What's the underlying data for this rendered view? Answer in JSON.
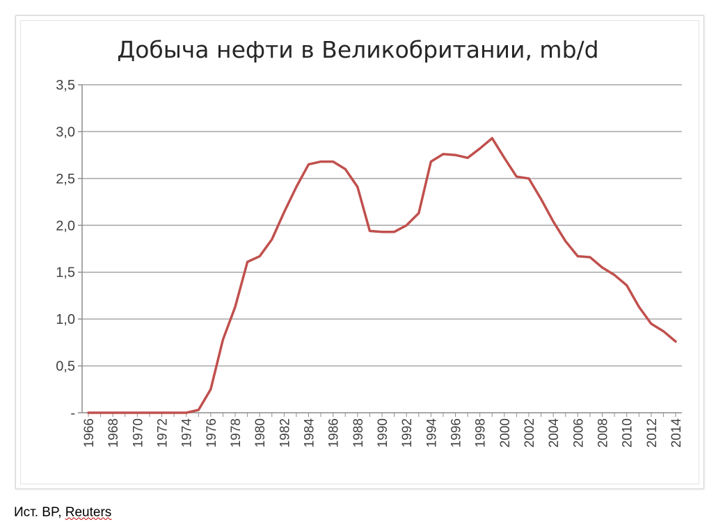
{
  "source": {
    "prefix": "Ист. BP, ",
    "name": "Reuters"
  },
  "chart_data": {
    "type": "line",
    "title": "Добыча нефти в Великобритании, mb/d",
    "xlabel": "",
    "ylabel": "",
    "ylim": [
      0,
      3.5
    ],
    "yticks": [
      "-",
      "0,5",
      "1,0",
      "1,5",
      "2,0",
      "2,5",
      "3,0",
      "3,5"
    ],
    "xtick_labels": [
      "1966",
      "1968",
      "1970",
      "1972",
      "1974",
      "1976",
      "1978",
      "1980",
      "1982",
      "1984",
      "1986",
      "1988",
      "1990",
      "1992",
      "1994",
      "1996",
      "1998",
      "2000",
      "2002",
      "2004",
      "2006",
      "2008",
      "2010",
      "2012",
      "2014"
    ],
    "grid": "horizontal",
    "line_color": "#c0504d",
    "x": [
      1966,
      1967,
      1968,
      1969,
      1970,
      1971,
      1972,
      1973,
      1974,
      1975,
      1976,
      1977,
      1978,
      1979,
      1980,
      1981,
      1982,
      1983,
      1984,
      1985,
      1986,
      1987,
      1988,
      1989,
      1990,
      1991,
      1992,
      1993,
      1994,
      1995,
      1996,
      1997,
      1998,
      1999,
      2000,
      2001,
      2002,
      2003,
      2004,
      2005,
      2006,
      2007,
      2008,
      2009,
      2010,
      2011,
      2012,
      2013,
      2014
    ],
    "values": [
      0,
      0,
      0,
      0,
      0,
      0,
      0,
      0,
      0,
      0.03,
      0.25,
      0.78,
      1.13,
      1.61,
      1.67,
      1.85,
      2.14,
      2.41,
      2.65,
      2.68,
      2.68,
      2.6,
      2.41,
      1.94,
      1.93,
      1.93,
      2.0,
      2.13,
      2.68,
      2.76,
      2.75,
      2.72,
      2.82,
      2.93,
      2.72,
      2.52,
      2.5,
      2.28,
      2.04,
      1.83,
      1.67,
      1.66,
      1.55,
      1.47,
      1.36,
      1.13,
      0.95,
      0.87,
      0.76
    ]
  }
}
